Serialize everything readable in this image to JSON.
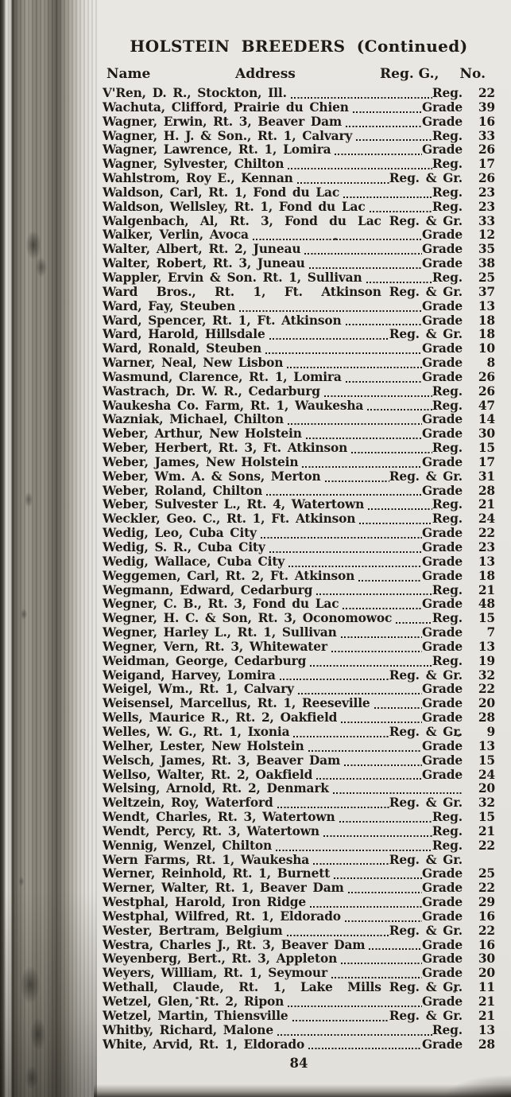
{
  "page": {
    "title": "HOLSTEIN BREEDERS (Continued)",
    "page_number": "84",
    "colors": {
      "paper": "#e9e7e2",
      "ink": "#1e1b17",
      "binding_dark": "#2b2822"
    }
  },
  "table": {
    "columns": {
      "name": "Name",
      "address": "Address",
      "reg": "Reg. G.,",
      "no": "No."
    },
    "rows": [
      {
        "text": "V'Ren, D. R., Stockton, Ill.",
        "reg": "Reg.",
        "no": "22",
        "dots": true
      },
      {
        "text": "Wachuta, Clifford, Prairie du Chien",
        "reg": "Grade",
        "no": "39",
        "dots": true
      },
      {
        "text": "Wagner, Erwin, Rt. 3, Beaver Dam",
        "reg": "Grade",
        "no": "16",
        "dots": true
      },
      {
        "text": "Wagner, H. J. & Son., Rt. 1, Calvary",
        "reg": "Reg.",
        "no": "33",
        "dots": true
      },
      {
        "text": "Wagner, Lawrence, Rt. 1, Lomira",
        "reg": "Grade",
        "no": "26",
        "dots": true
      },
      {
        "text": "Wagner, Sylvester, Chilton",
        "reg": "Reg.",
        "no": "17",
        "dots": true
      },
      {
        "text": "Wahlstrom, Roy E., Kennan",
        "reg": "Reg. & Gr.",
        "no": "26",
        "dots": true
      },
      {
        "text": "Waldson, Carl, Rt. 1, Fond du Lac",
        "reg": "Reg.",
        "no": "23",
        "dots": true
      },
      {
        "text": "Waldson, Wellsley, Rt. 1, Fond du Lac",
        "reg": "Reg.",
        "no": "23",
        "dots": true
      },
      {
        "text": "Walgenbach, Al, Rt. 3, Fond du Lac",
        "reg": "Reg. & Gr.",
        "no": "33",
        "dots": false
      },
      {
        "text": "Walker, Verlin, Avoca",
        "reg": "Grade",
        "no": "12",
        "dots": true
      },
      {
        "text": "Walter, Albert, Rt. 2, Juneau",
        "reg": "Grade",
        "no": "35",
        "dots": true
      },
      {
        "text": "Walter, Robert, Rt. 3, Juneau",
        "reg": "Grade",
        "no": "38",
        "dots": true
      },
      {
        "text": "Wappler, Ervin & Son. Rt. 1, Sullivan",
        "reg": "Reg.",
        "no": "25",
        "dots": true
      },
      {
        "text": "Ward Bros., Rt. 1, Ft. Atkinson",
        "reg": "Reg. & Gr.",
        "no": "37",
        "dots": false
      },
      {
        "text": "Ward, Fay, Steuben",
        "reg": "Grade",
        "no": "13",
        "dots": true
      },
      {
        "text": "Ward, Spencer, Rt. 1, Ft. Atkinson",
        "reg": "Grade",
        "no": "18",
        "dots": true
      },
      {
        "text": "Ward, Harold, Hillsdale",
        "reg": "Reg. & Gr.",
        "no": "18",
        "dots": true
      },
      {
        "text": "Ward, Ronald, Steuben",
        "reg": "Grade",
        "no": "10",
        "dots": true
      },
      {
        "text": "Warner, Neal, New Lisbon",
        "reg": "Grade",
        "no": "8",
        "dots": true
      },
      {
        "text": "Wasmund, Clarence, Rt. 1, Lomira",
        "reg": "Grade",
        "no": "26",
        "dots": true
      },
      {
        "text": "Wastrach, Dr. W. R., Cedarburg",
        "reg": "Reg.",
        "no": "26",
        "dots": true
      },
      {
        "text": "Waukesha Co. Farm, Rt. 1, Waukesha",
        "reg": "Reg.",
        "no": "47",
        "dots": true
      },
      {
        "text": "Wazniak, Michael, Chilton",
        "reg": "Grade",
        "no": "14",
        "dots": true
      },
      {
        "text": "Weber, Arthur, New Holstein",
        "reg": "Grade",
        "no": "30",
        "dots": true
      },
      {
        "text": "Weber, Herbert, Rt. 3, Ft. Atkinson",
        "reg": "Reg.",
        "no": "15",
        "dots": true
      },
      {
        "text": "Weber, James, New Holstein",
        "reg": "Grade",
        "no": "17",
        "dots": true
      },
      {
        "text": "Weber, Wm. A. & Sons, Merton",
        "reg": "Reg. & Gr.",
        "no": "31",
        "dots": true
      },
      {
        "text": "Weber, Roland, Chilton",
        "reg": "Grade",
        "no": "28",
        "dots": true
      },
      {
        "text": "Weber, Sulvester L., Rt. 4, Watertown",
        "reg": "Reg.",
        "no": "21",
        "dots": true
      },
      {
        "text": "Weckler, Geo. C., Rt. 1, Ft. Atkinson",
        "reg": "Reg.",
        "no": "24",
        "dots": true
      },
      {
        "text": "Wedig, Leo, Cuba City",
        "reg": "Grade",
        "no": "22",
        "dots": true
      },
      {
        "text": "Wedig, S. R., Cuba City",
        "reg": "Grade",
        "no": "23",
        "dots": true
      },
      {
        "text": "Wedig, Wallace, Cuba City",
        "reg": "Grade",
        "no": "13",
        "dots": true
      },
      {
        "text": "Weggemen, Carl, Rt. 2, Ft. Atkinson",
        "reg": "Grade",
        "no": "18",
        "dots": true
      },
      {
        "text": "Wegmann, Edward, Cedarburg",
        "reg": "Reg.",
        "no": "21",
        "dots": true
      },
      {
        "text": "Wegner, C. B., Rt. 3, Fond du Lac",
        "reg": "Grade",
        "no": "48",
        "dots": true
      },
      {
        "text": "Wegner, H. C. & Son, Rt. 3, Oconomowoc",
        "reg": "Reg.",
        "no": "15",
        "dots": true
      },
      {
        "text": "Wegner, Harley L., Rt. 1, Sullivan",
        "reg": "Grade",
        "no": "7",
        "dots": true
      },
      {
        "text": "Wegner, Vern, Rt. 3, Whitewater",
        "reg": "Grade",
        "no": "13",
        "dots": true
      },
      {
        "text": "Weidman, George, Cedarburg",
        "reg": "Reg.",
        "no": "19",
        "dots": true
      },
      {
        "text": "Weigand, Harvey, Lomira",
        "reg": "Reg. & Gr.",
        "no": "32",
        "dots": true
      },
      {
        "text": "Weigel, Wm., Rt. 1, Calvary",
        "reg": "Grade",
        "no": "22",
        "dots": true
      },
      {
        "text": "Weisensel, Marcellus, Rt. 1, Reeseville",
        "reg": "Grade",
        "no": "20",
        "dots": true
      },
      {
        "text": "Wells, Maurice R., Rt. 2, Oakfield",
        "reg": "Grade",
        "no": "28",
        "dots": true
      },
      {
        "text": "Welles, W. G., Rt. 1, Ixonia",
        "reg": "Reg. & Gr.",
        "no": "9",
        "dots": true
      },
      {
        "text": "Welher, Lester, New Holstein",
        "reg": "Grade",
        "no": "13",
        "dots": true
      },
      {
        "text": "Welsch, James, Rt. 3, Beaver Dam",
        "reg": "Grade",
        "no": "15",
        "dots": true
      },
      {
        "text": "Wellso, Walter, Rt. 2, Oakfield",
        "reg": "Grade",
        "no": "24",
        "dots": true
      },
      {
        "text": "Welsing, Arnold, Rt. 2, Denmark",
        "reg": "",
        "no": "20",
        "dots": true
      },
      {
        "text": "Weltzein, Roy, Waterford",
        "reg": "Reg. & Gr.",
        "no": "32",
        "dots": true
      },
      {
        "text": "Wendt, Charles, Rt. 3, Watertown",
        "reg": "Reg.",
        "no": "15",
        "dots": true
      },
      {
        "text": "Wendt, Percy, Rt. 3, Watertown",
        "reg": "Reg.",
        "no": "21",
        "dots": true
      },
      {
        "text": "Wennig, Wenzel, Chilton",
        "reg": "Reg.",
        "no": "22",
        "dots": true
      },
      {
        "text": "Wern Farms, Rt. 1, Waukesha",
        "reg": "Reg. & Gr.",
        "no": "",
        "dots": true
      },
      {
        "text": "Werner, Reinhold, Rt. 1, Burnett",
        "reg": "Grade",
        "no": "25",
        "dots": true
      },
      {
        "text": "Werner, Walter, Rt. 1, Beaver Dam",
        "reg": "Grade",
        "no": "22",
        "dots": true
      },
      {
        "text": "Westphal, Harold, Iron Ridge",
        "reg": "Grade",
        "no": "29",
        "dots": true
      },
      {
        "text": "Westphal, Wilfred, Rt. 1, Eldorado",
        "reg": "Grade",
        "no": "16",
        "dots": true
      },
      {
        "text": "Wester, Bertram, Belgium",
        "reg": "Reg. & Gr.",
        "no": "22",
        "dots": true
      },
      {
        "text": "Westra, Charles J., Rt. 3, Beaver Dam",
        "reg": "Grade",
        "no": "16",
        "dots": true
      },
      {
        "text": "Weyenberg, Bert., Rt. 3, Appleton",
        "reg": "Grade",
        "no": "30",
        "dots": true
      },
      {
        "text": "Weyers, William, Rt. 1, Seymour",
        "reg": "Grade",
        "no": "20",
        "dots": true
      },
      {
        "text": "Wethall, Claude, Rt. 1, Lake Mills",
        "reg": "Reg. & Gr.",
        "no": "11",
        "dots": false
      },
      {
        "text": "Wetzel, Glen, Rt. 2, Ripon",
        "reg": "Grade",
        "no": "21",
        "dots": true
      },
      {
        "text": "Wetzel, Martin, Thiensville",
        "reg": "Reg. & Gr.",
        "no": "21",
        "dots": true
      },
      {
        "text": "Whitby, Richard, Malone",
        "reg": "Reg.",
        "no": "13",
        "dots": true
      },
      {
        "text": "White, Arvid, Rt. 1, Eldorado",
        "reg": "Grade",
        "no": "28",
        "dots": true
      }
    ]
  }
}
